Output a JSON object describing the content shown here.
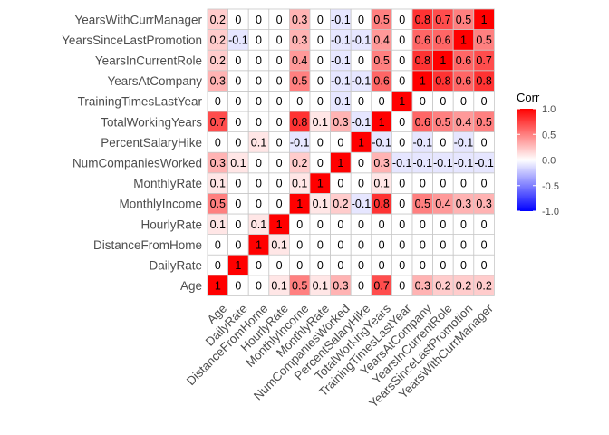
{
  "chart_data": {
    "type": "heatmap",
    "title": "",
    "xlabel": "",
    "ylabel": "",
    "variables": [
      "Age",
      "DailyRate",
      "DistanceFromHome",
      "HourlyRate",
      "MonthlyIncome",
      "MonthlyRate",
      "NumCompaniesWorked",
      "PercentSalaryHike",
      "TotalWorkingYears",
      "TrainingTimesLastYear",
      "YearsAtCompany",
      "YearsInCurrentRole",
      "YearsSinceLastPromotion",
      "YearsWithCurrManager"
    ],
    "matrix": [
      [
        1,
        0,
        0,
        0.1,
        0.5,
        0.1,
        0.3,
        0,
        0.7,
        0,
        0.3,
        0.2,
        0.2,
        0.2
      ],
      [
        0,
        1,
        0,
        0,
        0,
        0,
        0,
        0,
        0,
        0,
        0,
        0,
        0,
        0
      ],
      [
        0,
        0,
        1,
        0.1,
        0,
        0,
        0,
        0,
        0,
        0,
        0,
        0,
        0,
        0
      ],
      [
        0.1,
        0,
        0.1,
        1,
        0,
        0,
        0,
        0,
        0,
        0,
        0,
        0,
        0,
        0
      ],
      [
        0.5,
        0,
        0,
        0,
        1,
        0.1,
        0.2,
        -0.1,
        0.8,
        0,
        0.5,
        0.4,
        0.3,
        0.3
      ],
      [
        0.1,
        0,
        0,
        0,
        0.1,
        1,
        0,
        0,
        0.1,
        0,
        0,
        0,
        0,
        0
      ],
      [
        0.3,
        0.1,
        0,
        0,
        0.2,
        0,
        1,
        0,
        0.3,
        -0.1,
        -0.1,
        -0.1,
        -0.1,
        -0.1
      ],
      [
        0,
        0,
        0.1,
        0,
        -0.1,
        0,
        0,
        1,
        -0.1,
        0,
        -0.1,
        0,
        -0.1,
        0
      ],
      [
        0.7,
        0,
        0,
        0,
        0.8,
        0.1,
        0.3,
        -0.1,
        1,
        0,
        0.6,
        0.5,
        0.4,
        0.5
      ],
      [
        0,
        0,
        0,
        0,
        0,
        0,
        -0.1,
        0,
        0,
        1,
        0,
        0,
        0,
        0
      ],
      [
        0.3,
        0,
        0,
        0,
        0.5,
        0,
        -0.1,
        -0.1,
        0.6,
        0,
        1,
        0.8,
        0.6,
        0.8
      ],
      [
        0.2,
        0,
        0,
        0,
        0.4,
        0,
        -0.1,
        0,
        0.5,
        0,
        0.8,
        1,
        0.6,
        0.7
      ],
      [
        0.2,
        -0.1,
        0,
        0,
        0.3,
        0,
        -0.1,
        -0.1,
        0.4,
        0,
        0.6,
        0.6,
        1,
        0.5
      ],
      [
        0.2,
        0,
        0,
        0,
        0.3,
        0,
        -0.1,
        0,
        0.5,
        0,
        0.8,
        0.7,
        0.5,
        1
      ]
    ],
    "value_range": [
      -1,
      1
    ],
    "legend": {
      "title": "Corr",
      "ticks": [
        1.0,
        0.5,
        0.0,
        -0.5,
        -1.0
      ],
      "tick_labels": [
        "1.0",
        "0.5",
        "0.0",
        "-0.5",
        "-1.0"
      ],
      "placement": "right"
    },
    "colors": {
      "low": "#0000ff",
      "mid": "#ffffff",
      "high": "#ff0000",
      "cell_border": "#c8c8c8"
    },
    "grid": false
  }
}
